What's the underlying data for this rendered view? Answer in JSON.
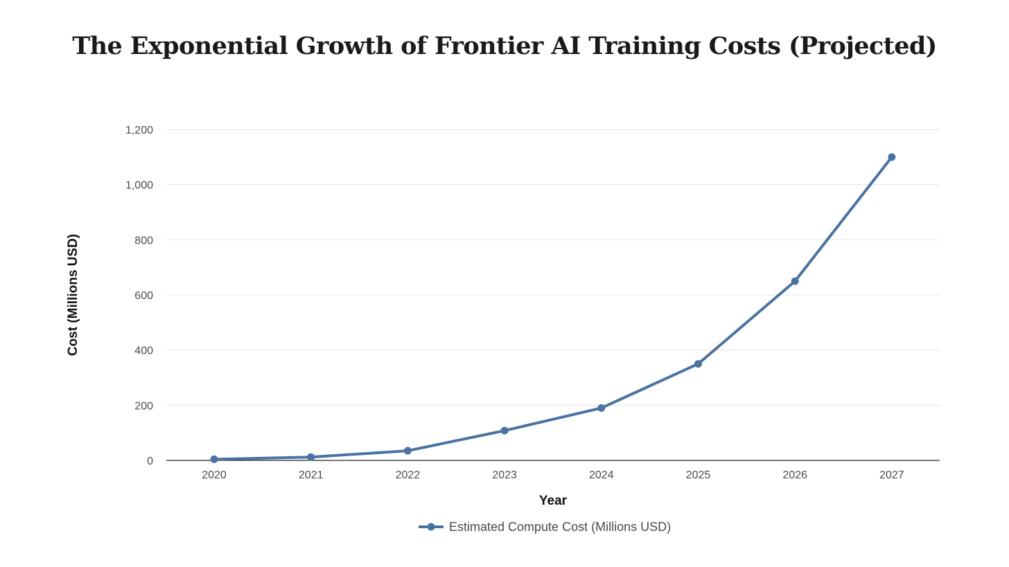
{
  "chart_data": {
    "type": "line",
    "title": "The Exponential Growth of Frontier AI Training Costs (Projected)",
    "xlabel": "Year",
    "ylabel": "Cost (Millions USD)",
    "categories": [
      "2020",
      "2021",
      "2022",
      "2023",
      "2024",
      "2025",
      "2026",
      "2027"
    ],
    "series": [
      {
        "name": "Estimated Compute Cost (Millions USD)",
        "values": [
          4,
          12,
          35,
          108,
          190,
          350,
          650,
          1100
        ],
        "color": "#4a73a1"
      }
    ],
    "ylim": [
      0,
      1200
    ],
    "yticks": [
      0,
      200,
      400,
      600,
      800,
      1000,
      1200
    ],
    "ytick_labels": [
      "0",
      "200",
      "400",
      "600",
      "800",
      "1,000",
      "1,200"
    ],
    "grid": true,
    "legend": "bottom-center"
  }
}
